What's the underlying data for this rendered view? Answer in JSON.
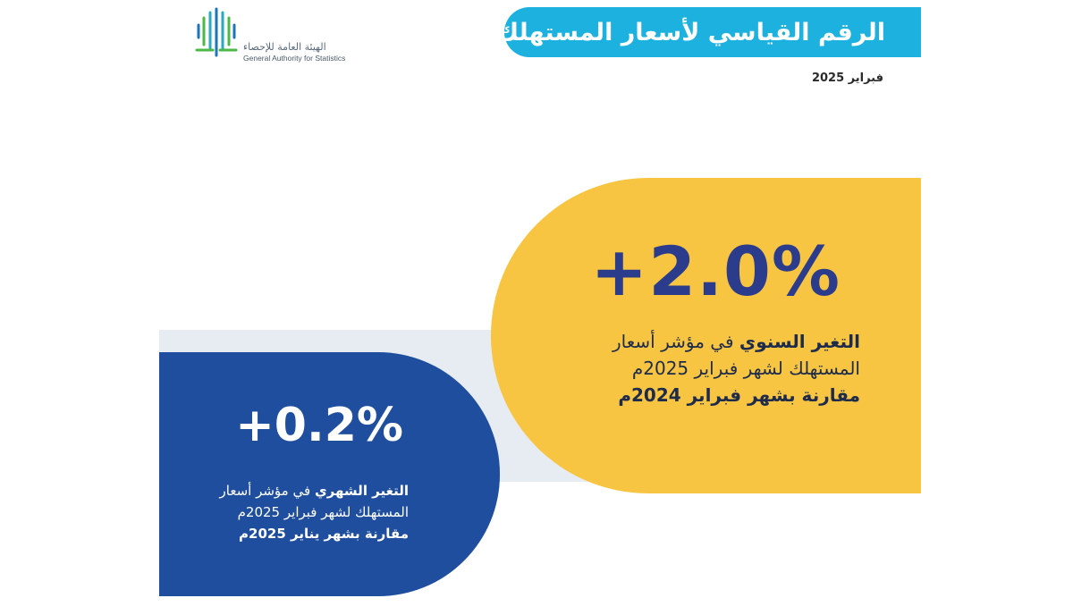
{
  "logo": {
    "name_ar": "الهيئة العامة للإحصاء",
    "name_en": "General Authority for Statistics"
  },
  "header": {
    "title": "الرقم القياسي لأسعار المستهلك",
    "date": "فبراير 2025"
  },
  "annual": {
    "value": "+2.0%",
    "line1_bold": "التغير السنوي",
    "line1_rest": " في مؤشر أسعار",
    "line2": "المستهلك لشهر فبراير 2025م",
    "line3": "مقارنة بشهر فبراير 2024م"
  },
  "monthly": {
    "value": "+0.2%",
    "line1_bold": "التغير الشهري",
    "line1_rest": " في مؤشر أسعار",
    "line2": "المستهلك لشهر فبراير 2025م",
    "line3": "مقارنة بشهر يناير 2025م"
  },
  "colors": {
    "title_bar": "#1cb1df",
    "yellow_card": "#f7c542",
    "blue_card": "#1e4e9d",
    "annual_value": "#2b3c8c",
    "band": "#e7ebf2",
    "logo_green": "#4cb848",
    "logo_blue": "#1d74b9",
    "logo_teal": "#29a9c5"
  }
}
